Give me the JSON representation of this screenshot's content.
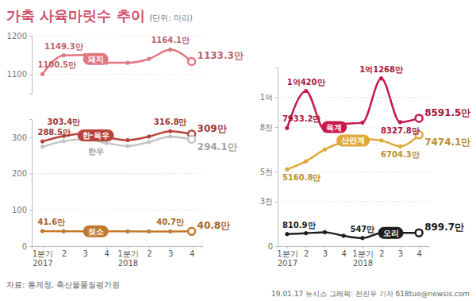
{
  "header": {
    "title": "가축 사육마릿수 추이",
    "subtitle": "(단위: 마리)"
  },
  "footer": {
    "source": "자료: 통계청, 축산물품질평가원",
    "credit": "19.01.17 뉴시스 그래픽: 전진우 기자 618tue@newsis.com"
  },
  "chart_data": [
    {
      "type": "line",
      "categories": [
        "1분기 2017",
        "2",
        "3",
        "4",
        "1분기 2018",
        "2",
        "3",
        "4"
      ],
      "ylim": [
        1050,
        1200
      ],
      "yticks": [
        1100,
        1200
      ],
      "grid": true,
      "tick_labels": "y",
      "data_labels": true,
      "marker": "circle",
      "series": [
        {
          "name": "돼지",
          "color": "#e07880",
          "values": [
            1100.5,
            1149.3,
            1150,
            1130,
            1130,
            1140,
            1164.1,
            1133.3
          ],
          "value_labels": [
            "1100.5만",
            "1149.3만",
            null,
            null,
            null,
            null,
            "1164.1만",
            "1133.3만"
          ]
        }
      ]
    },
    {
      "type": "line",
      "categories": [
        "1분기 2017",
        "2",
        "3",
        "4",
        "1분기 2018",
        "2",
        "3",
        "4"
      ],
      "ylim": [
        0,
        350
      ],
      "yticks": [
        0,
        100,
        200,
        300
      ],
      "grid": true,
      "data_labels": true,
      "marker": "circle",
      "series": [
        {
          "name": "한·육우",
          "color": "#b8433d",
          "values": [
            288.5,
            303.4,
            310,
            300,
            292,
            302,
            316.8,
            309
          ],
          "value_labels": [
            "288.5만",
            "303.4만",
            null,
            null,
            null,
            null,
            "316.8만",
            "309만"
          ]
        },
        {
          "name": "한우",
          "color": "#c4c4c4",
          "values": [
            274,
            289,
            295,
            284,
            276,
            287,
            302,
            294.1
          ],
          "value_labels": [
            null,
            null,
            null,
            null,
            null,
            null,
            null,
            "294.1만"
          ]
        },
        {
          "name": "젖소",
          "color": "#c47a2c",
          "values": [
            41.6,
            41.2,
            41,
            40.9,
            40.8,
            40.7,
            40.7,
            40.8
          ],
          "value_labels": [
            "41.6만",
            null,
            null,
            null,
            null,
            null,
            "40.7만",
            "40.8만"
          ]
        }
      ]
    },
    {
      "type": "line",
      "categories": [
        "1분기 2017",
        "2",
        "3",
        "4",
        "1분기 2018",
        "2",
        "3",
        "4"
      ],
      "ylim": [
        0,
        12000
      ],
      "yticks": [
        0,
        {
          "value": 3000,
          "label": "3천"
        },
        {
          "value": 5000,
          "label": "5천"
        },
        {
          "value": 8000,
          "label": "8천"
        },
        {
          "value": 10000,
          "label": "1억"
        }
      ],
      "grid": true,
      "data_labels": true,
      "marker": "circle",
      "series": [
        {
          "name": "육계",
          "color": "#c8194f",
          "values": [
            7933.2,
            10420,
            7800,
            8200,
            8300,
            11268,
            8327.8,
            8591.5
          ],
          "value_labels": [
            "7933.2만",
            "1억420만",
            null,
            null,
            null,
            "1억1268만",
            "8327.8만",
            "8591.5만"
          ]
        },
        {
          "name": "산란계",
          "color": "#e0a93a",
          "values": [
            5160.8,
            5700,
            6500,
            7000,
            7200,
            7100,
            6704.3,
            7474.1
          ],
          "value_labels": [
            "5160.8만",
            null,
            null,
            null,
            null,
            null,
            "6704.3만",
            "7474.1만"
          ]
        },
        {
          "name": "오리",
          "color": "#1e1e1e",
          "values": [
            810.9,
            870,
            940,
            700,
            547,
            880,
            900,
            899.7
          ],
          "value_labels": [
            "810.9만",
            null,
            null,
            null,
            "547만",
            null,
            null,
            "899.7만"
          ]
        }
      ]
    }
  ]
}
